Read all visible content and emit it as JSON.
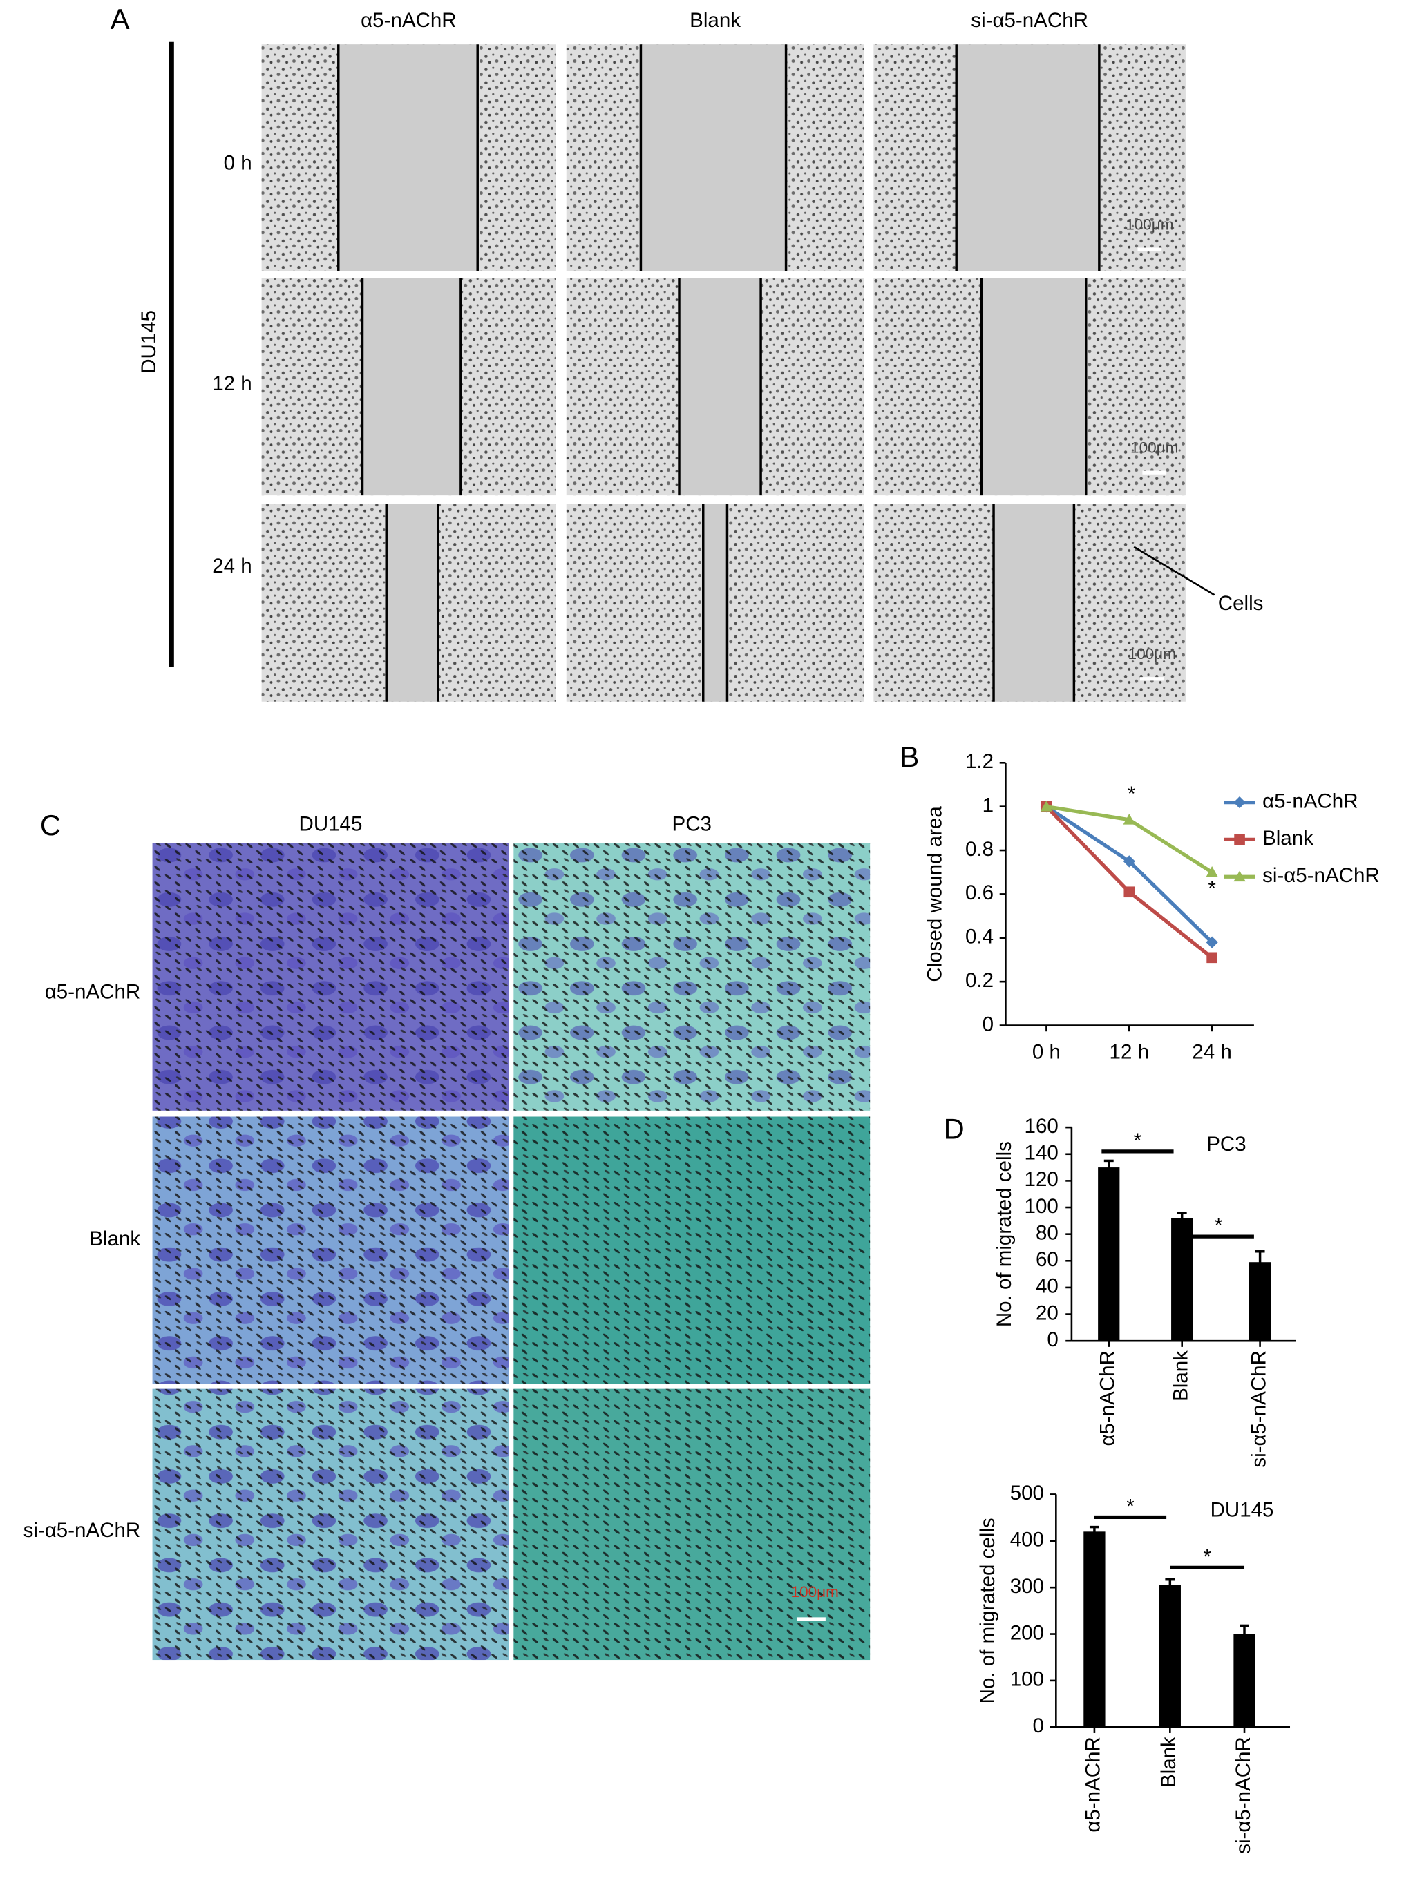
{
  "panel_labels": [
    "A",
    "B",
    "C",
    "D"
  ],
  "wound_assay": {
    "cell_line": "DU145",
    "columns": [
      "α5-nAChR",
      "Blank",
      "si-α5-nAChR"
    ],
    "rows": [
      "0 h",
      "12 h",
      "24 h"
    ],
    "scale_bar_labels": [
      "100μm",
      "100μm",
      "100μm"
    ],
    "annotation": "Cells"
  },
  "transwell": {
    "columns": [
      "DU145",
      "PC3"
    ],
    "rows": [
      "α5-nAChR",
      "Blank",
      "si-α5-nAChR"
    ],
    "scale_bar_label": "100μm"
  },
  "chart_data": [
    {
      "type": "line",
      "y_label": "Closed wound area",
      "categories": [
        "0 h",
        "12 h",
        "24 h"
      ],
      "series": [
        {
          "name": "α5-nAChR",
          "color": "#4a7ebb",
          "marker": "diamond",
          "values": [
            1.0,
            0.75,
            0.38
          ],
          "errors": [
            0.02,
            0.02,
            0.02
          ]
        },
        {
          "name": "Blank",
          "color": "#be4b48",
          "marker": "square",
          "values": [
            1.0,
            0.61,
            0.31
          ],
          "errors": [
            0.02,
            0.02,
            0.02
          ]
        },
        {
          "name": "si-α5-nAChR",
          "color": "#98b954",
          "marker": "triangle",
          "values": [
            1.0,
            0.94,
            0.7
          ],
          "errors": [
            0.02,
            0.02,
            0.02
          ]
        }
      ],
      "annotations": [
        "*",
        "*"
      ],
      "ylim": [
        0,
        1.2
      ],
      "yticks": [
        0,
        0.2,
        0.4,
        0.6,
        0.8,
        1,
        1.2
      ],
      "legend": "right"
    },
    {
      "type": "bar",
      "title": "PC3",
      "y_label": "No. of migrated cells",
      "categories": [
        "α5-nAChR",
        "Blank",
        "si-α5-nAChR"
      ],
      "values": [
        130,
        92,
        59
      ],
      "errors": [
        5,
        4,
        8
      ],
      "color": "#000000",
      "annotations": [
        "*",
        "*"
      ],
      "ylim": [
        0,
        160
      ],
      "yticks": [
        0,
        20,
        40,
        60,
        80,
        100,
        120,
        140,
        160
      ]
    },
    {
      "type": "bar",
      "title": "DU145",
      "y_label": "No. of migrated cells",
      "categories": [
        "α5-nAChR",
        "Blank",
        "si-α5-nAChR"
      ],
      "values": [
        420,
        305,
        200
      ],
      "errors": [
        10,
        12,
        18
      ],
      "color": "#000000",
      "annotations": [
        "*",
        "*"
      ],
      "ylim": [
        0,
        500
      ],
      "yticks": [
        0,
        100,
        200,
        300,
        400,
        500
      ]
    }
  ]
}
